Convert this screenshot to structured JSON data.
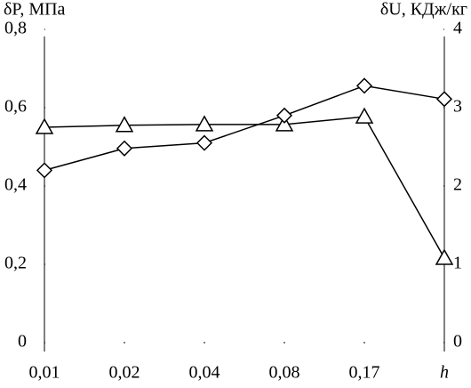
{
  "chart_data": {
    "type": "line",
    "ylabel": "δP, МПа",
    "y2label": "δU, КДж/кг",
    "xlabel": "h",
    "categories": [
      "0,01",
      "0,02",
      "0,04",
      "0,08",
      "0,17",
      null
    ],
    "ylim": [
      0,
      0.8
    ],
    "yticks": [
      0,
      {
        "value": 0.2,
        "label": "0,2"
      },
      {
        "value": 0.4,
        "label": "0,4"
      },
      {
        "value": 0.6,
        "label": "0,6"
      },
      {
        "value": 0.8,
        "label": "0,8"
      }
    ],
    "y2lim": [
      0,
      4
    ],
    "y2ticks": [
      0,
      1,
      2,
      3,
      4
    ],
    "series": [
      {
        "marker": "triangle",
        "color": "#000000",
        "values": [
          0.55,
          0.555,
          0.557,
          0.557,
          0.577,
          0.216
        ]
      },
      {
        "marker": "diamond",
        "color": "#000000",
        "axis": "y2",
        "values": [
          2.2,
          2.48,
          2.55,
          2.9,
          3.28,
          3.11
        ]
      }
    ]
  }
}
